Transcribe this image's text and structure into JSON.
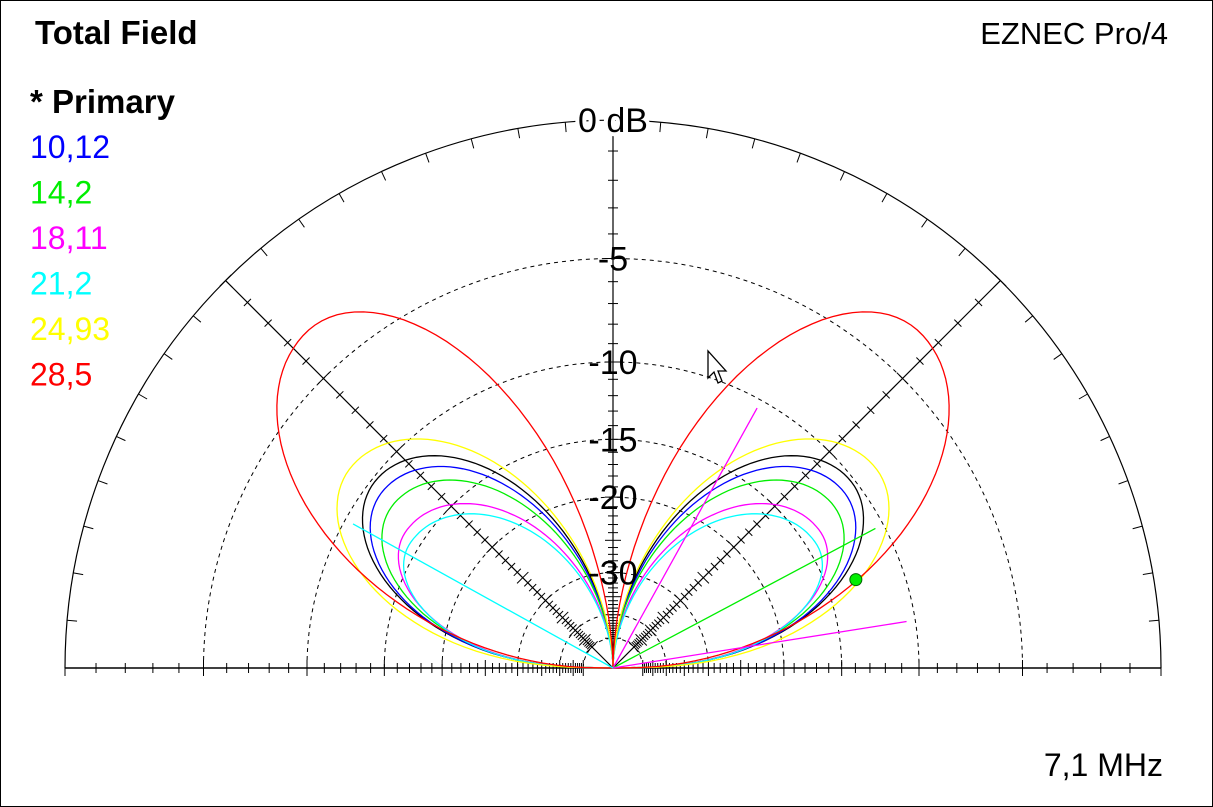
{
  "header": {
    "title": "Total Field",
    "brand": "EZNEC Pro/4"
  },
  "footer": {
    "frequency": "7,1 MHz"
  },
  "legend": {
    "heading": "* Primary",
    "items": [
      {
        "label": "10,12",
        "color": "#0000ff"
      },
      {
        "label": "14,2",
        "color": "#00ee00"
      },
      {
        "label": "18,11",
        "color": "#ff00ff"
      },
      {
        "label": "21,2",
        "color": "#00ffff"
      },
      {
        "label": "24,93",
        "color": "#ffff00"
      },
      {
        "label": "28,5",
        "color": "#ff0000"
      }
    ]
  },
  "chart_data": {
    "type": "polar-elevation",
    "grid": true,
    "ring_labels": [
      "0 dB",
      "-5",
      "-10",
      "-15",
      "-20",
      "-30"
    ],
    "ring_db": [
      0,
      -5,
      -10,
      -15,
      -20,
      -30
    ],
    "angle_tick_step_deg": 5,
    "diagonal_angles_deg": [
      45,
      135
    ],
    "series": [
      {
        "name": "* Primary",
        "color": "#000000",
        "max_db": -10.2,
        "theta": 38
      },
      {
        "name": "10,12",
        "color": "#0000ff",
        "max_db": -10.9,
        "theta": 37
      },
      {
        "name": "14,2",
        "color": "#00ee00",
        "max_db": -11.9,
        "theta": 36
      },
      {
        "name": "18,11",
        "color": "#ff00ff",
        "max_db": -13.6,
        "theta": 33
      },
      {
        "name": "21,2",
        "color": "#00ffff",
        "max_db": -14.3,
        "theta": 31
      },
      {
        "name": "24,93",
        "color": "#ffff00",
        "max_db": -8.7,
        "theta": 37
      },
      {
        "name": "28,5",
        "color": "#ff0000",
        "max_db": -3.2,
        "theta": 48
      }
    ],
    "markers": [
      {
        "color": "#00ee00",
        "angle_deg": 20,
        "db": -12.9
      }
    ],
    "radial_lines": [
      {
        "color": "#ff00ff",
        "angle_deg": 61
      },
      {
        "color": "#00ee00",
        "angle_deg": 28
      },
      {
        "color": "#ff00ff",
        "angle_deg": 9
      },
      {
        "color": "#00ffff",
        "angle_deg": 151
      }
    ]
  }
}
